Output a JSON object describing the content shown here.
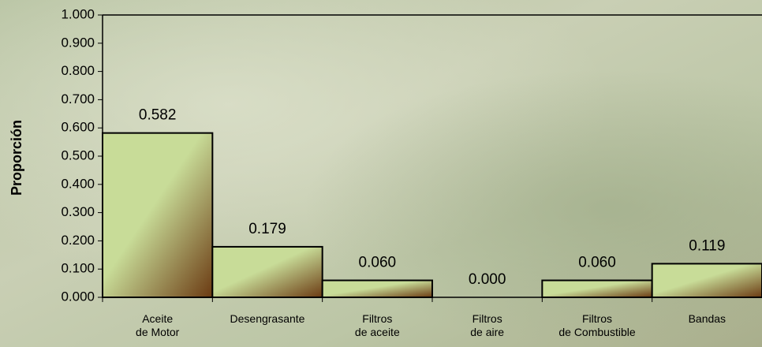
{
  "chart_data": {
    "type": "bar",
    "y_label": "Proporción",
    "categories": [
      [
        "Aceite",
        "de Motor"
      ],
      [
        "Desengrasante"
      ],
      [
        "Filtros",
        "de aceite"
      ],
      [
        "Filtros",
        "de aire"
      ],
      [
        "Filtros",
        "de Combustible"
      ],
      [
        "Bandas"
      ]
    ],
    "values": [
      0.582,
      0.179,
      0.06,
      0,
      0.06,
      0.119
    ],
    "value_labels": [
      "0.582",
      "0.179",
      "0.060",
      "0.000",
      "0.060",
      "0.119"
    ],
    "color": "#c8dc98",
    "ylim": [
      0,
      1
    ],
    "yticks": [
      {
        "value": 0,
        "label": "0.000"
      },
      {
        "value": 0.1,
        "label": "0.100"
      },
      {
        "value": 0.2,
        "label": "0.200"
      },
      {
        "value": 0.3,
        "label": "0.300"
      },
      {
        "value": 0.4,
        "label": "0.400"
      },
      {
        "value": 0.5,
        "label": "0.500"
      },
      {
        "value": 0.6,
        "label": "0.600"
      },
      {
        "value": 0.7,
        "label": "0.700"
      },
      {
        "value": 0.8,
        "label": "0.800"
      },
      {
        "value": 0.9,
        "label": "0.900"
      },
      {
        "value": 1,
        "label": "1.000"
      }
    ]
  }
}
